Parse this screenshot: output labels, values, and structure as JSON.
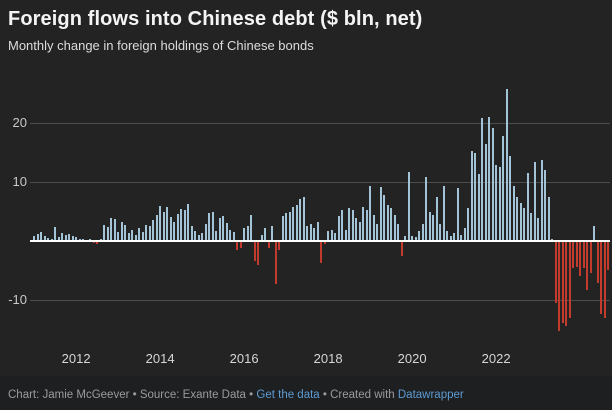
{
  "header": {
    "title": "Foreign flows into Chinese debt ($ bln, net)",
    "subtitle": "Monthly change in foreign holdings of Chinese bonds"
  },
  "footer": {
    "credit": "Chart: Jamie McGeever • Source: Exante Data",
    "sep1": " • ",
    "get_data_link": "Get the data",
    "sep2": " • ",
    "created_with": "Created with ",
    "datawrapper_link": "Datawrapper"
  },
  "colors": {
    "background": "#232323",
    "positive_bar": "#a3c4d6",
    "negative_bar": "#c23b2d",
    "zero_line": "#ffffff",
    "gridline": "#4d4d4d",
    "axis_text": "#c9c9c9",
    "link": "#5d9bd3"
  },
  "chart_data": {
    "type": "bar",
    "title": "Foreign flows into Chinese debt ($ bln, net)",
    "subtitle": "Monthly change in foreign holdings of Chinese bonds",
    "unit": "$ bln, net per month",
    "frequency": "monthly",
    "x_start": "2011-01",
    "grid": true,
    "ylim": [
      -18,
      27
    ],
    "xlabel": "",
    "ylabel": "",
    "y_axis": {
      "ticks": [
        {
          "label": "20",
          "value": 20
        },
        {
          "label": "10",
          "value": 10
        },
        {
          "label": "-10",
          "value": -10
        }
      ]
    },
    "x_axis": {
      "ticks": [
        {
          "label": "2012",
          "index": 12
        },
        {
          "label": "2014",
          "index": 36
        },
        {
          "label": "2016",
          "index": 60
        },
        {
          "label": "2018",
          "index": 84
        },
        {
          "label": "2020",
          "index": 108
        },
        {
          "label": "2022",
          "index": 132
        }
      ]
    },
    "values": [
      0.8,
      1.2,
      1.5,
      0.9,
      0.5,
      0.3,
      2.4,
      0.6,
      1.3,
      1.1,
      1.2,
      0.8,
      0.6,
      0.4,
      0.3,
      0.2,
      0.3,
      -0.2,
      -0.3,
      0.4,
      2.7,
      2.4,
      3.9,
      3.8,
      1.6,
      3.3,
      2.7,
      1.4,
      1.9,
      1.1,
      2.2,
      1.6,
      2.7,
      2.5,
      3.6,
      4.4,
      6.0,
      4.9,
      5.7,
      4.1,
      3.3,
      4.6,
      5.5,
      5.2,
      6.3,
      2.5,
      1.7,
      1.1,
      1.4,
      2.8,
      4.8,
      5.0,
      1.7,
      3.9,
      4.2,
      3.1,
      1.8,
      1.5,
      -1.3,
      -1.0,
      2.2,
      2.5,
      4.4,
      -3.3,
      -3.9,
      1.1,
      2.2,
      -1.1,
      2.5,
      -7.2,
      -1.4,
      4.2,
      4.7,
      5.0,
      5.8,
      6.1,
      7.2,
      7.5,
      2.5,
      2.8,
      2.2,
      3.3,
      -3.6,
      -0.3,
      1.7,
      1.9,
      1.4,
      4.2,
      5.3,
      1.9,
      5.6,
      5.3,
      3.9,
      3.3,
      5.8,
      5.3,
      9.4,
      4.4,
      2.8,
      9.2,
      7.8,
      6.1,
      5.6,
      4.4,
      2.8,
      -2.4,
      0.8,
      11.7,
      0.8,
      0.6,
      1.7,
      2.8,
      10.8,
      5.0,
      4.4,
      7.5,
      2.8,
      9.4,
      1.7,
      0.8,
      1.4,
      8.9,
      1.1,
      2.2,
      5.6,
      15.3,
      15.0,
      11.4,
      20.8,
      16.4,
      21.1,
      19.2,
      12.8,
      12.5,
      17.8,
      25.8,
      14.4,
      9.4,
      7.5,
      6.4,
      5.6,
      11.5,
      4.7,
      13.4,
      3.9,
      13.7,
      12.0,
      7.5,
      0.3,
      -10.3,
      -15.1,
      -13.8,
      -14.2,
      -12.9,
      -4.4,
      -4.2,
      -5.8,
      -4.4,
      -8.1,
      -5.3,
      2.5,
      -6.9,
      -12.2,
      -12.8,
      -4.7
    ],
    "legend": null,
    "notes": "positive = inflow (blue bars), negative = outflow (red bars)"
  }
}
